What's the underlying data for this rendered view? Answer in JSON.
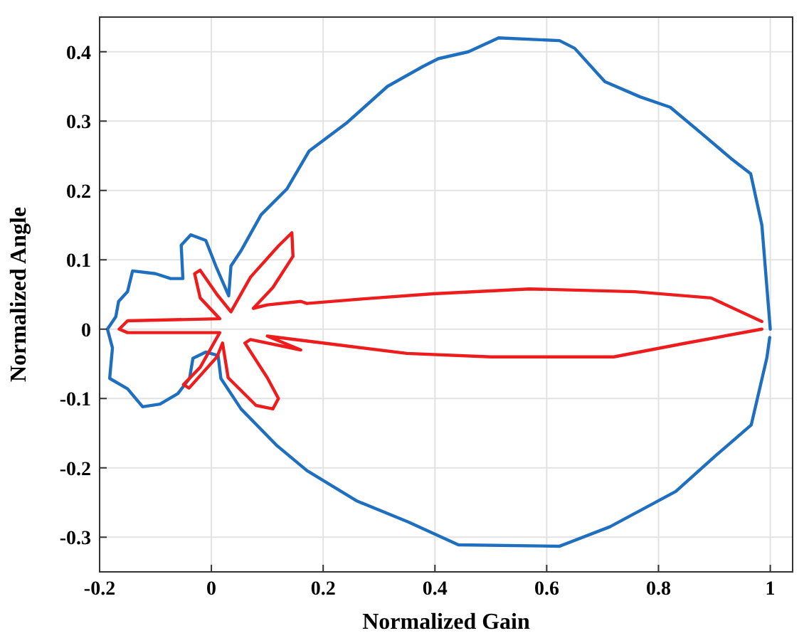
{
  "chart_data": {
    "type": "line",
    "xlabel": "Normalized Gain",
    "ylabel": "Normalized Angle",
    "xlim": [
      -0.2,
      1.04
    ],
    "ylim": [
      -0.35,
      0.45
    ],
    "xticks": [
      {
        "value": -0.2,
        "label": "-0.2"
      },
      0,
      {
        "value": 0.2,
        "label": "0.2"
      },
      {
        "value": 0.4,
        "label": "0.4"
      },
      {
        "value": 0.6,
        "label": "0.6"
      },
      {
        "value": 0.8,
        "label": "0.8"
      },
      1
    ],
    "yticks": [
      {
        "value": -0.3,
        "label": "-0.3"
      },
      {
        "value": -0.2,
        "label": "-0.2"
      },
      {
        "value": -0.1,
        "label": "-0.1"
      },
      0,
      {
        "value": 0.1,
        "label": "0.1"
      },
      {
        "value": 0.2,
        "label": "0.2"
      },
      {
        "value": 0.3,
        "label": "0.3"
      },
      {
        "value": 0.4,
        "label": "0.4"
      }
    ],
    "grid": true,
    "marker": "none",
    "line_style": "solid",
    "series": [
      {
        "color": "#1f6fc0",
        "x": [
          1.0,
          0.985,
          0.965,
          0.93,
          0.876,
          0.821,
          0.767,
          0.704,
          0.65,
          0.623,
          0.514,
          0.46,
          0.406,
          0.379,
          0.315,
          0.243,
          0.175,
          0.135,
          0.089,
          0.053,
          0.035,
          0.031,
          0.008,
          -0.01,
          -0.037,
          -0.054,
          -0.051,
          -0.073,
          -0.1,
          -0.141,
          -0.15,
          -0.166,
          -0.171,
          -0.186,
          -0.177,
          -0.182,
          -0.15,
          -0.123,
          -0.092,
          -0.06,
          -0.039,
          -0.033,
          -0.01,
          0.012,
          0.017,
          0.053,
          0.116,
          0.171,
          0.261,
          0.352,
          0.442,
          0.623,
          0.713,
          0.831,
          0.903,
          0.966,
          0.994,
          0.999
        ],
        "values": [
          0,
          0.15,
          0.224,
          0.246,
          0.283,
          0.32,
          0.335,
          0.357,
          0.405,
          0.416,
          0.42,
          0.4,
          0.39,
          0.379,
          0.35,
          0.298,
          0.257,
          0.202,
          0.165,
          0.113,
          0.091,
          0.048,
          0.091,
          0.128,
          0.136,
          0.121,
          0.073,
          0.073,
          0.08,
          0.084,
          0.054,
          0.04,
          0.018,
          0,
          -0.027,
          -0.071,
          -0.086,
          -0.112,
          -0.108,
          -0.093,
          -0.071,
          -0.042,
          -0.033,
          -0.038,
          -0.071,
          -0.115,
          -0.167,
          -0.204,
          -0.248,
          -0.278,
          -0.311,
          -0.313,
          -0.285,
          -0.234,
          -0.182,
          -0.138,
          -0.041,
          -0.012
        ]
      },
      {
        "color": "#ee1c1c",
        "x": [
          0.985,
          0.894,
          0.758,
          0.569,
          0.397,
          0.261,
          0.171,
          0.16,
          0.1,
          0.075,
          0.11,
          0.146,
          0.144,
          0.12,
          0.07,
          0.035,
          0.01,
          -0.02,
          -0.03,
          -0.02,
          0.015,
          -0.15,
          -0.165,
          -0.15,
          0.015,
          -0.02,
          -0.05,
          -0.04,
          0.01,
          0.02,
          0.03,
          0.08,
          0.11,
          0.12,
          0.1,
          0.06,
          0.07,
          0.16,
          0.1,
          0.2,
          0.35,
          0.5,
          0.6,
          0.72,
          0.85,
          0.985
        ],
        "values": [
          0.011,
          0.045,
          0.054,
          0.058,
          0.051,
          0.043,
          0.037,
          0.04,
          0.035,
          0.03,
          0.06,
          0.105,
          0.139,
          0.12,
          0.075,
          0.025,
          0.05,
          0.085,
          0.08,
          0.045,
          0.015,
          0.012,
          0,
          -0.005,
          -0.005,
          -0.055,
          -0.08,
          -0.085,
          -0.04,
          -0.02,
          -0.07,
          -0.11,
          -0.115,
          -0.1,
          -0.07,
          -0.02,
          -0.015,
          -0.03,
          -0.01,
          -0.02,
          -0.035,
          -0.04,
          -0.04,
          -0.04,
          -0.02,
          0
        ]
      }
    ]
  }
}
